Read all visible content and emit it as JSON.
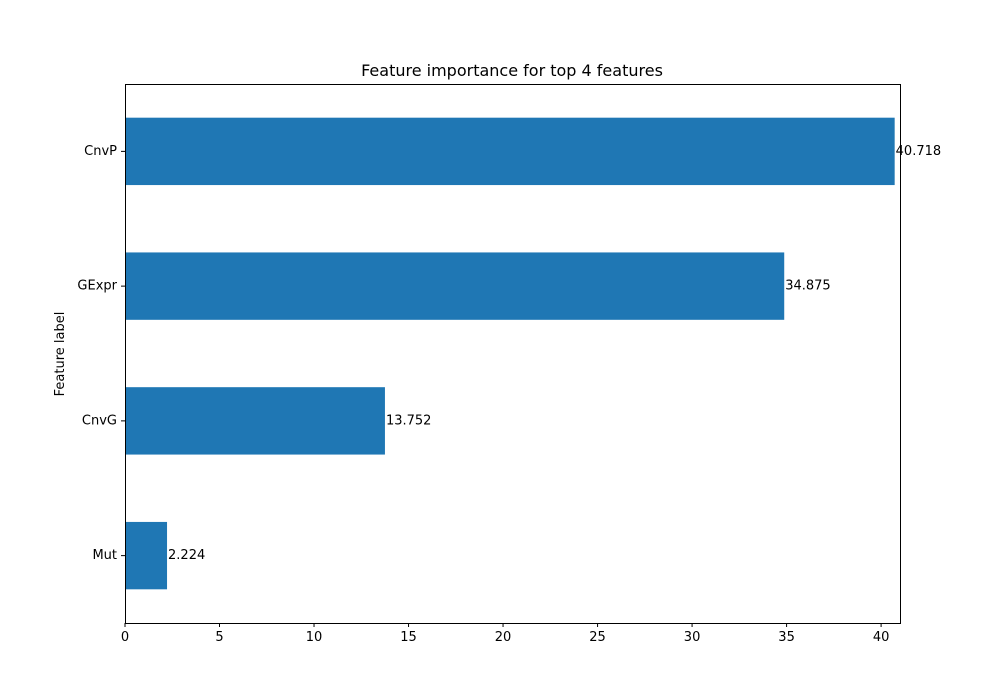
{
  "chart_data": {
    "type": "bar",
    "orientation": "horizontal",
    "title": "Feature importance for top 4 features",
    "xlabel": "",
    "ylabel": "Feature label",
    "categories": [
      "CnvP",
      "GExpr",
      "CnvG",
      "Mut"
    ],
    "values": [
      40.718,
      34.875,
      13.752,
      2.224
    ],
    "data_labels": [
      "40.718",
      "34.875",
      "13.752",
      "2.224"
    ],
    "xlim": [
      0,
      41
    ],
    "x_ticks": [
      0,
      5,
      10,
      15,
      20,
      25,
      30,
      35,
      40
    ],
    "grid": false,
    "legend": "none",
    "bar_color": "#1f77b4"
  }
}
